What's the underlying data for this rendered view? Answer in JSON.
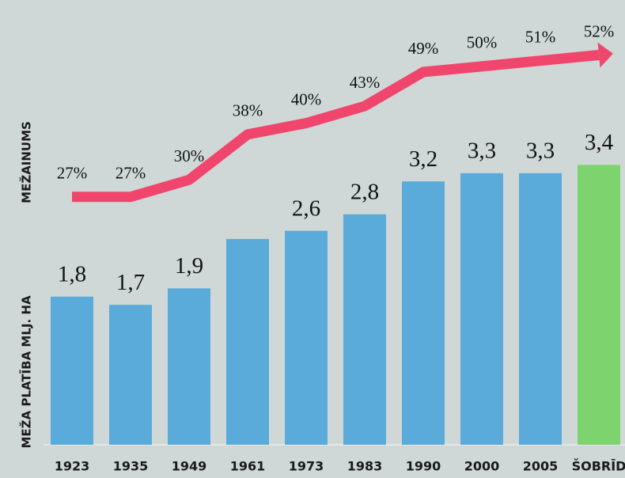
{
  "chart_data": {
    "type": "bar_line",
    "categories": [
      "1923",
      "1935",
      "1949",
      "1961",
      "1973",
      "1983",
      "1990",
      "2000",
      "2005",
      "ŠOBRĪD"
    ],
    "ylabel": "MEŽA PLATĪBA MLJ. HA",
    "y2label": "MEŽAINUMS",
    "ylim": [
      0,
      5
    ],
    "y2lim": [
      20,
      55
    ],
    "series": [
      {
        "type": "bar",
        "colors": [
          "#5aabd9",
          "#5aabd9",
          "#5aabd9",
          "#5aabd9",
          "#5aabd9",
          "#5aabd9",
          "#5aabd9",
          "#5aabd9",
          "#5aabd9",
          "#7dd36e"
        ],
        "values": [
          1.8,
          1.7,
          1.9,
          2.5,
          2.6,
          2.8,
          3.2,
          3.3,
          3.3,
          3.4
        ],
        "value_labels": [
          "1,8",
          "1,7",
          "1,9",
          null,
          "2,6",
          "2,8",
          "3,2",
          "3,3",
          "3,3",
          "3,4"
        ]
      },
      {
        "type": "line",
        "axis": "y2",
        "color": "#f0466e",
        "values": [
          27,
          27,
          30,
          38,
          40,
          43,
          49,
          50,
          51,
          52
        ],
        "value_labels": [
          "27%",
          "27%",
          "30%",
          "38%",
          "40%",
          "43%",
          "49%",
          "50%",
          "51%",
          "52%"
        ]
      }
    ]
  }
}
